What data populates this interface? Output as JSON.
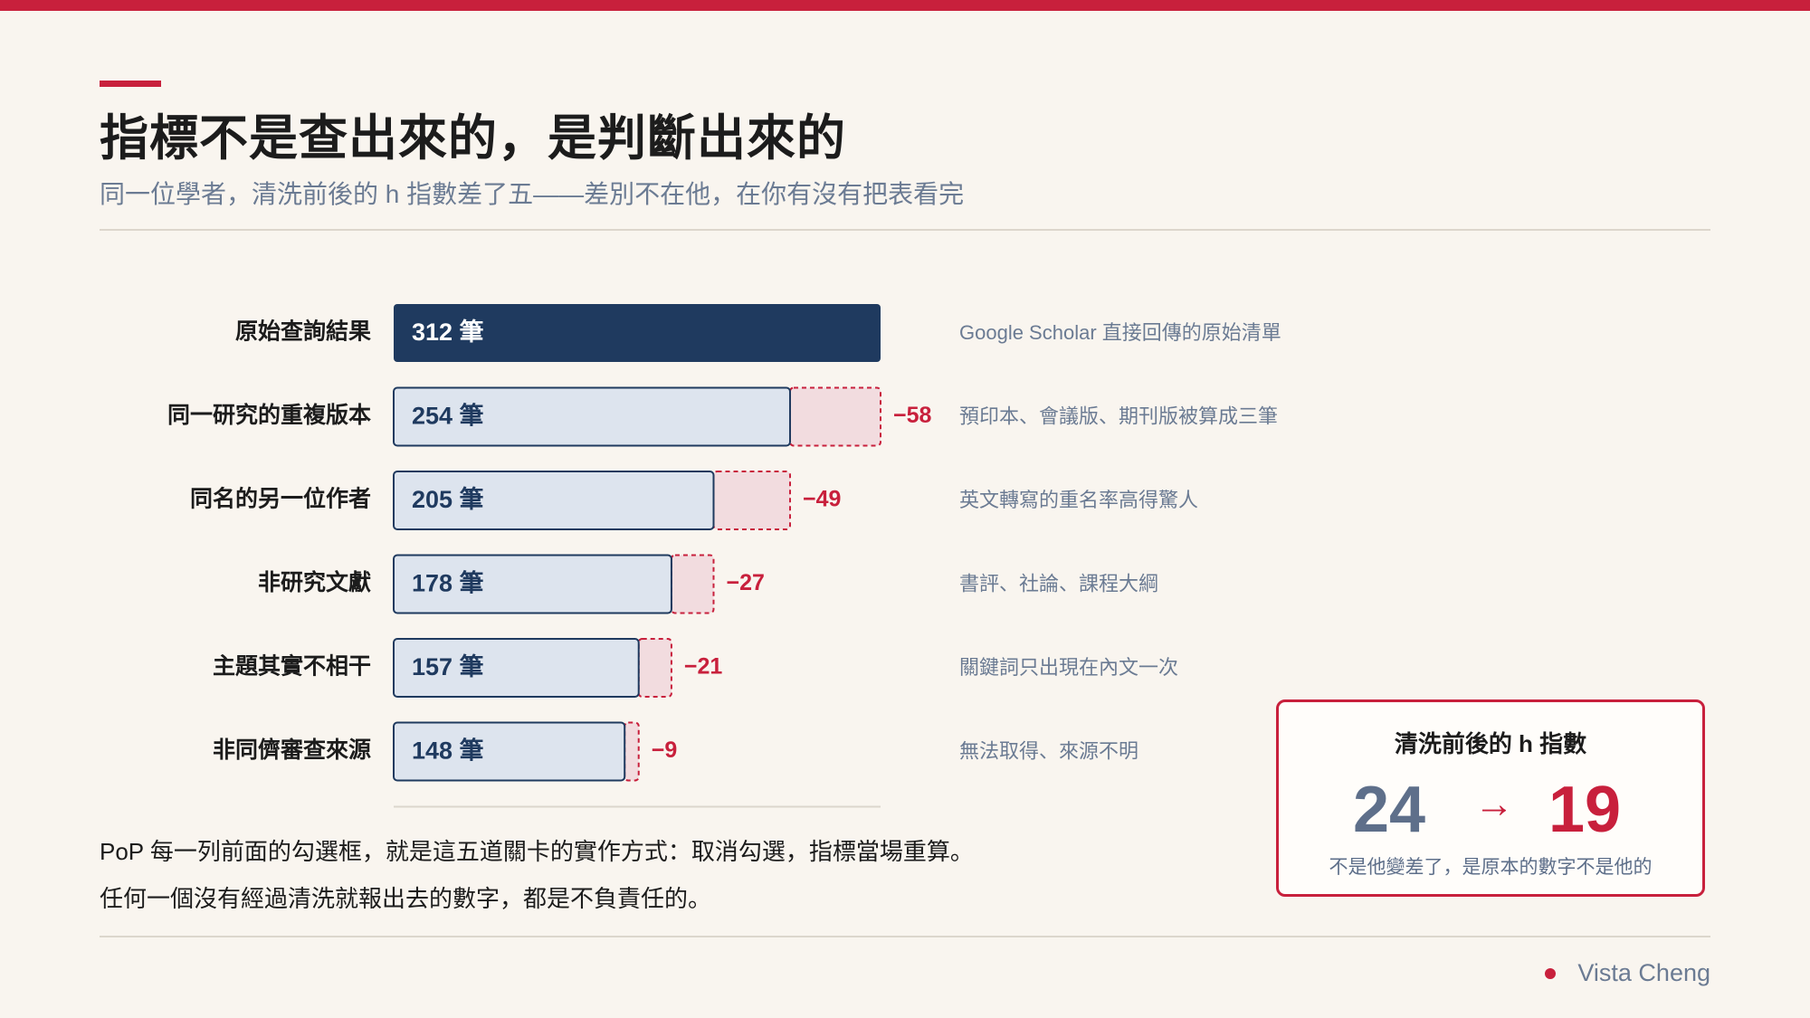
{
  "header": {
    "title": "指標不是查出來的，是判斷出來的",
    "subtitle": "同一位學者，清洗前後的 h 指數差了五——差別不在他，在你有沒有把表看完"
  },
  "chart_data": {
    "type": "bar",
    "orientation": "horizontal",
    "categories": [
      "原始查詢結果",
      "同一研究的重複版本",
      "同名的另一位作者",
      "非研究文獻",
      "主題其實不相干",
      "非同儕審查來源"
    ],
    "values": [
      312,
      254,
      205,
      178,
      157,
      148
    ],
    "unit": "筆",
    "deltas": [
      null,
      -58,
      -49,
      -27,
      -21,
      -9
    ],
    "notes": [
      "Google Scholar 直接回傳的原始清單",
      "預印本、會議版、期刊版被算成三筆",
      "英文轉寫的重名率高得驚人",
      "書評、社論、課程大綱",
      "關鍵詞只出現在內文一次",
      "無法取得、來源不明"
    ],
    "xlim": [
      0,
      312
    ],
    "colors": {
      "first_bar": "#1f3a5f",
      "bar_fill": "#dde4ee",
      "bar_stroke": "#1f3a5f",
      "removed_fill": "#f2dcdf",
      "removed_stroke": "#c8203c"
    }
  },
  "footnotes": {
    "line1": "PoP 每一列前面的勾選框，就是這五道關卡的實作方式：取消勾選，指標當場重算。",
    "line2": "任何一個沒有經過清洗就報出去的數字，都是不負責任的。"
  },
  "hindex": {
    "title": "清洗前後的 h 指數",
    "before": "24",
    "arrow": "→",
    "after": "19",
    "note": "不是他變差了，是原本的數字不是他的"
  },
  "author": "Vista Cheng",
  "colors": {
    "accent": "#c8203c",
    "navy": "#1f3a5f",
    "muted": "#6b7b93",
    "background": "#f9f5ef"
  }
}
